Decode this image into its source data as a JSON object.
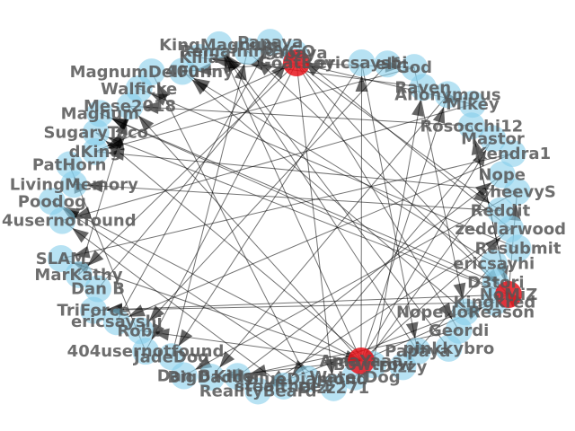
{
  "colors": {
    "node_default": "#87ceeb",
    "node_hub": "#e8151c",
    "edge": "#000000",
    "label": "#555555"
  },
  "graph": {
    "nodes": [
      {
        "label": "ericsayshi",
        "hub": false
      },
      {
        "label": "elf",
        "hub": false
      },
      {
        "label": "God",
        "hub": false
      },
      {
        "label": "Raven",
        "hub": false
      },
      {
        "label": "Anonymous",
        "hub": false
      },
      {
        "label": "Mikey",
        "hub": false
      },
      {
        "label": "Rosocchi12",
        "hub": false
      },
      {
        "label": "Mastor",
        "hub": false
      },
      {
        "label": "Kendra1",
        "hub": false
      },
      {
        "label": "Nope",
        "hub": false
      },
      {
        "label": "SheevyS",
        "hub": false
      },
      {
        "label": "Reddit",
        "hub": false
      },
      {
        "label": "zeddarwood",
        "hub": false
      },
      {
        "label": "Resubmit",
        "hub": false
      },
      {
        "label": "ericsayhi",
        "hub": false
      },
      {
        "label": "D3tori",
        "hub": false
      },
      {
        "label": "Kingkred",
        "hub": false
      },
      {
        "label": "NopeNoReason",
        "hub": false
      },
      {
        "label": "Geordi",
        "hub": false
      },
      {
        "label": "pinkkybro",
        "hub": false
      },
      {
        "label": "Papaya",
        "hub": false
      },
      {
        "label": "Dizzy",
        "hub": false
      },
      {
        "label": "Bowtrow",
        "hub": false
      },
      {
        "label": "WaterDog",
        "hub": false
      },
      {
        "label": "Dizz271",
        "hub": false
      },
      {
        "label": "BlueDiamond",
        "hub": false
      },
      {
        "label": "stealthee1",
        "hub": false
      },
      {
        "label": "RealityBeard",
        "hub": false
      },
      {
        "label": "Killer",
        "hub": false
      },
      {
        "label": "BigDaddy",
        "hub": false
      },
      {
        "label": "Dan B",
        "hub": false
      },
      {
        "label": "JadeDog",
        "hub": false
      },
      {
        "label": "404usernotfound",
        "hub": false
      },
      {
        "label": "Robo",
        "hub": false
      },
      {
        "label": "ericsayshi",
        "hub": false
      },
      {
        "label": "TriForce",
        "hub": false
      },
      {
        "label": "Dan B",
        "hub": false
      },
      {
        "label": "MarKathy",
        "hub": false
      },
      {
        "label": "SLAM",
        "hub": false
      },
      {
        "label": "NoMiZ",
        "hub": true
      },
      {
        "label": "4usernotfound",
        "hub": false
      },
      {
        "label": "Poodog",
        "hub": false
      },
      {
        "label": "LivingMemory",
        "hub": false
      },
      {
        "label": "PatHorn",
        "hub": false
      },
      {
        "label": "dKing",
        "hub": false
      },
      {
        "label": "SugaryTaco",
        "hub": false
      },
      {
        "label": "Magnum",
        "hub": false
      },
      {
        "label": "Mese2018",
        "hub": false
      },
      {
        "label": "Walficke",
        "hub": false
      },
      {
        "label": "MagnumDelFunny",
        "hub": false
      },
      {
        "label": "400",
        "hub": false
      },
      {
        "label": "Killa",
        "hub": false
      },
      {
        "label": "KingMagnum",
        "hub": false
      },
      {
        "label": "RemainingYGO",
        "hub": false
      },
      {
        "label": "Papaya",
        "hub": false
      },
      {
        "label": "Papaya",
        "hub": false
      },
      {
        "label": "AmaYaaa",
        "hub": true
      },
      {
        "label": "GoatBoy",
        "hub": true
      }
    ],
    "edges": [
      [
        0,
        20
      ],
      [
        1,
        33
      ],
      [
        2,
        44
      ],
      [
        3,
        51
      ],
      [
        4,
        29
      ],
      [
        5,
        40
      ],
      [
        6,
        47
      ],
      [
        7,
        26
      ],
      [
        8,
        38
      ],
      [
        9,
        23
      ],
      [
        10,
        30
      ],
      [
        11,
        42
      ],
      [
        12,
        27
      ],
      [
        13,
        48
      ],
      [
        14,
        21
      ],
      [
        15,
        46
      ],
      [
        16,
        35
      ],
      [
        17,
        50
      ],
      [
        18,
        28
      ],
      [
        19,
        52
      ],
      [
        22,
        45
      ],
      [
        24,
        41
      ],
      [
        25,
        49
      ],
      [
        31,
        53
      ],
      [
        32,
        43
      ],
      [
        34,
        54
      ],
      [
        36,
        55
      ],
      [
        37,
        47
      ],
      [
        39,
        45
      ],
      [
        0,
        31
      ],
      [
        2,
        17
      ],
      [
        6,
        39
      ],
      [
        8,
        34
      ],
      [
        10,
        44
      ],
      [
        12,
        55
      ],
      [
        14,
        50
      ],
      [
        20,
        52
      ],
      [
        22,
        3
      ],
      [
        26,
        40
      ],
      [
        28,
        9
      ],
      [
        56,
        0
      ],
      [
        56,
        4
      ],
      [
        56,
        7
      ],
      [
        56,
        12
      ],
      [
        56,
        16
      ],
      [
        56,
        22
      ],
      [
        56,
        29
      ],
      [
        56,
        33
      ],
      [
        56,
        38
      ],
      [
        56,
        41
      ],
      [
        56,
        47
      ],
      [
        56,
        52
      ],
      [
        57,
        2
      ],
      [
        57,
        5
      ],
      [
        57,
        11
      ],
      [
        57,
        18
      ],
      [
        57,
        24
      ],
      [
        57,
        32
      ],
      [
        57,
        37
      ],
      [
        57,
        44
      ],
      [
        57,
        50
      ],
      [
        57,
        54
      ],
      [
        57,
        39
      ],
      [
        39,
        6
      ],
      [
        39,
        15
      ],
      [
        39,
        27
      ],
      [
        39,
        35
      ],
      [
        39,
        46
      ],
      [
        39,
        53
      ],
      [
        39,
        10
      ]
    ]
  }
}
